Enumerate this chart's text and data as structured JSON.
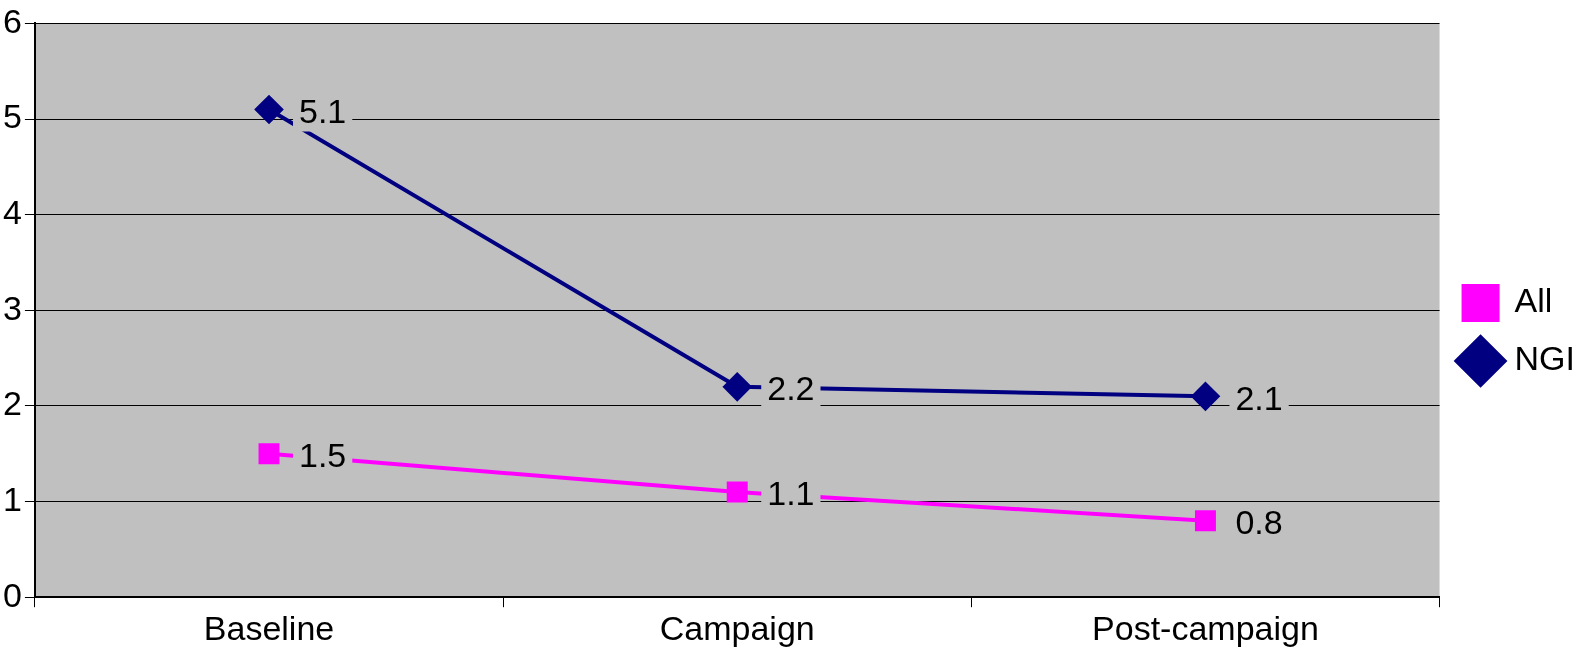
{
  "chart_data": {
    "type": "line",
    "categories": [
      "Baseline",
      "Campaign",
      "Post-campaign"
    ],
    "series": [
      {
        "name": "All",
        "color": "#ff00ff",
        "values": [
          1.5,
          1.1,
          0.8
        ],
        "marker": "square"
      },
      {
        "name": "NGI",
        "color": "#000080",
        "values": [
          5.1,
          2.2,
          2.1
        ],
        "marker": "diamond"
      }
    ],
    "ylim": [
      0,
      6
    ],
    "yticks": [
      0,
      1,
      2,
      3,
      4,
      5,
      6
    ],
    "grid": "y",
    "legend": "right",
    "data_labels": true
  }
}
